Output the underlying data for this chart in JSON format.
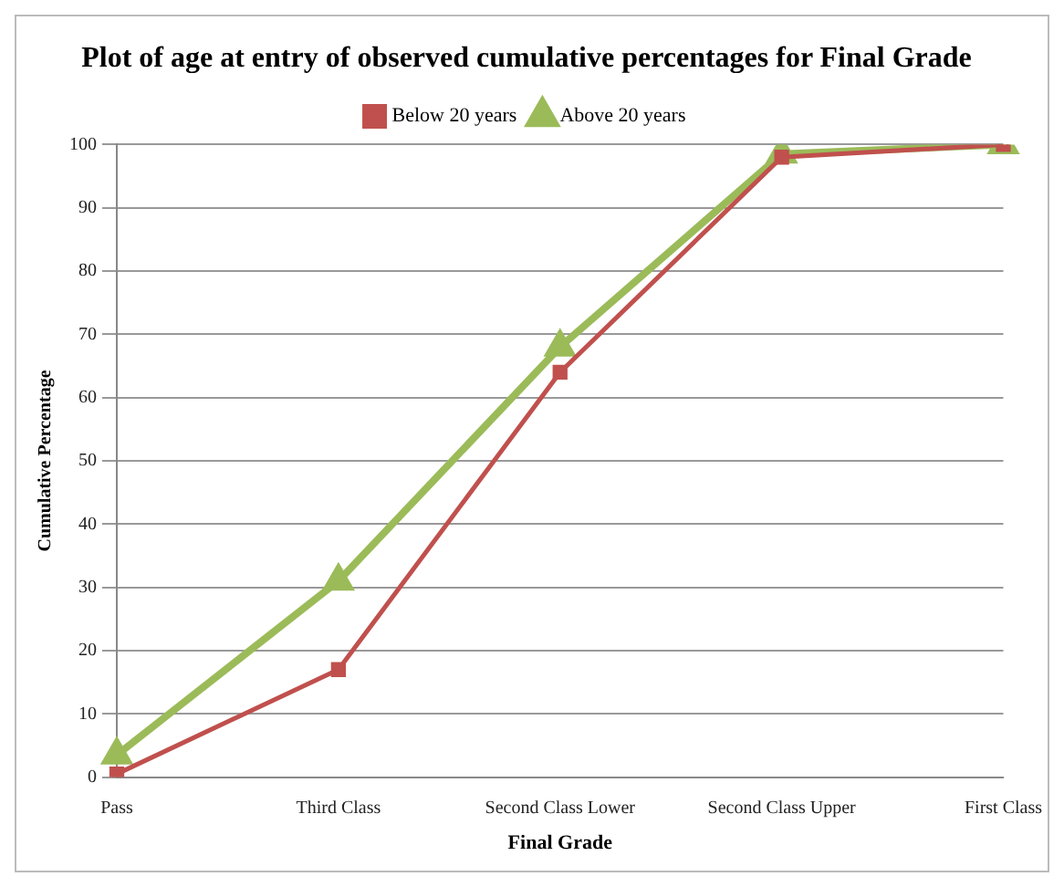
{
  "chart_data": {
    "type": "line",
    "title": "Plot of age at entry of observed cumulative percentages for Final Grade",
    "xlabel": "Final Grade",
    "ylabel": "Cumulative Percentage",
    "categories": [
      "Pass",
      "Third Class",
      "Second Class Lower",
      "Second Class Upper",
      "First Class"
    ],
    "series": [
      {
        "name": "Below 20 years",
        "color": "#c0504d",
        "marker": "square",
        "values": [
          0.5,
          17,
          64,
          98,
          100
        ]
      },
      {
        "name": "Above 20 years",
        "color": "#9bbb59",
        "marker": "triangle",
        "values": [
          3.5,
          31,
          68,
          98.5,
          100
        ]
      }
    ],
    "ylim": [
      0,
      100
    ],
    "yticks": [
      0,
      10,
      20,
      30,
      40,
      50,
      60,
      70,
      80,
      90,
      100
    ],
    "grid": "y",
    "legend": "top",
    "line_style": "solid"
  }
}
